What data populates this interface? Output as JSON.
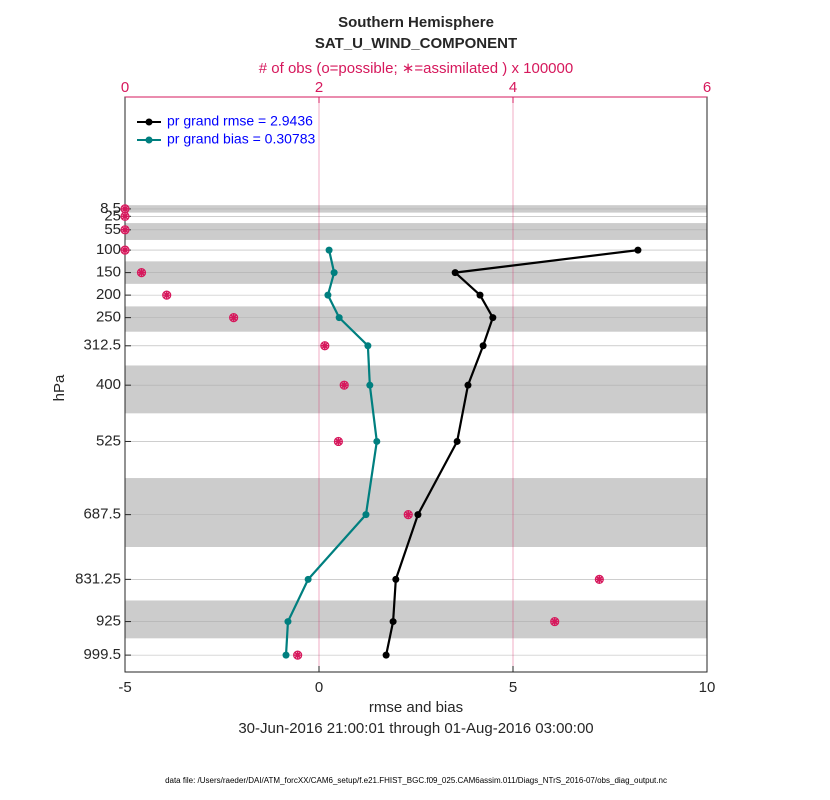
{
  "chart_data": {
    "type": "profile",
    "title": "Southern Hemisphere",
    "subtitle": "SAT_U_WIND_COMPONENT",
    "x2_label": "# of obs (o=possible; ∗=assimilated ) x 100000",
    "ylabel": "hPa",
    "xlabel": "rmse and bias",
    "date_range": "30-Jun-2016 21:00:01 through 01-Aug-2016 03:00:00",
    "footnote": "data file: /Users/raeder/DAI/ATM_forcXX/CAM6_setup/f.e21.FHIST_BGC.f09_025.CAM6assim.011/Diags_NTrS_2016-07/obs_diag_output.nc",
    "y": [
      8.5,
      25,
      55,
      100,
      150,
      200,
      250,
      312.5,
      400,
      525,
      687.5,
      831.25,
      925,
      999.5
    ],
    "series": [
      {
        "name": "pr grand rmse = 2.9436",
        "color": "#000000",
        "values": [
          null,
          null,
          null,
          8.22,
          3.51,
          4.15,
          4.48,
          4.23,
          3.84,
          3.56,
          2.55,
          1.98,
          1.91,
          1.73
        ]
      },
      {
        "name": "pr grand bias = 0.30783",
        "color": "#007f7f",
        "values": [
          null,
          null,
          null,
          0.26,
          0.39,
          0.23,
          0.52,
          1.26,
          1.31,
          1.49,
          1.21,
          -0.28,
          -0.8,
          -0.85
        ]
      }
    ],
    "obs_color": "#d6185c",
    "obs_possible": [
      0,
      0,
      0,
      0,
      0.17,
      0.43,
      1.12,
      2.06,
      2.26,
      2.2,
      2.92,
      4.89,
      4.43,
      1.78
    ],
    "obs_assimilated": [
      0,
      0,
      0,
      0,
      0.17,
      0.43,
      1.12,
      2.06,
      2.26,
      2.2,
      2.92,
      4.89,
      4.43,
      1.78
    ],
    "xlim": [
      -5,
      10
    ],
    "xticks": [
      -5,
      0,
      5,
      10
    ],
    "x2lim": [
      0,
      6
    ],
    "x2ticks": [
      0,
      2,
      4,
      6
    ],
    "ylim": [
      -240,
      1037
    ],
    "yticks": [
      8.5,
      25,
      55,
      100,
      150,
      200,
      250,
      312.5,
      400,
      525,
      687.5,
      831.25,
      925,
      999.5
    ],
    "y_reversed": true,
    "legend": "upper left"
  }
}
